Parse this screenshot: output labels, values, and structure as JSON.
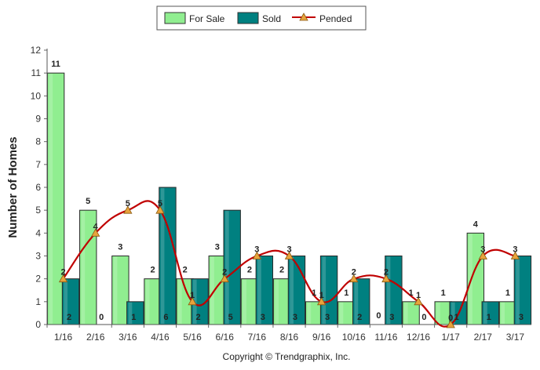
{
  "chart_data": {
    "type": "bar",
    "ylabel": "Number of Homes",
    "ylim": [
      0,
      12
    ],
    "y_ticks": [
      0,
      1,
      2,
      3,
      4,
      5,
      6,
      7,
      8,
      9,
      10,
      11,
      12
    ],
    "grid": false,
    "legend_position": "top-center",
    "categories": [
      "1/16",
      "2/16",
      "3/16",
      "4/16",
      "5/16",
      "6/16",
      "7/16",
      "8/16",
      "9/16",
      "10/16",
      "11/16",
      "12/16",
      "1/17",
      "2/17",
      "3/17"
    ],
    "series": [
      {
        "name": "For Sale",
        "type": "bar",
        "color": "#90ee90",
        "values": [
          11,
          5,
          3,
          2,
          2,
          3,
          2,
          2,
          1,
          1,
          0,
          1,
          1,
          4,
          1
        ]
      },
      {
        "name": "Sold",
        "type": "bar",
        "color": "#008080",
        "values": [
          2,
          0,
          1,
          6,
          2,
          5,
          3,
          3,
          3,
          2,
          3,
          0,
          1,
          1,
          3
        ]
      },
      {
        "name": "Pended",
        "type": "line",
        "color": "#c00000",
        "marker_color": "#e8a33c",
        "values": [
          2,
          4,
          5,
          5,
          1,
          2,
          3,
          3,
          1,
          2,
          2,
          1,
          0,
          3,
          3
        ]
      }
    ]
  },
  "legend": {
    "items": [
      {
        "label": "For Sale",
        "color": "#90ee90"
      },
      {
        "label": "Sold",
        "color": "#008080"
      },
      {
        "label": "Pended",
        "color": "#c00000"
      }
    ]
  },
  "footer": {
    "copyright": "Copyright © Trendgraphix, Inc."
  }
}
